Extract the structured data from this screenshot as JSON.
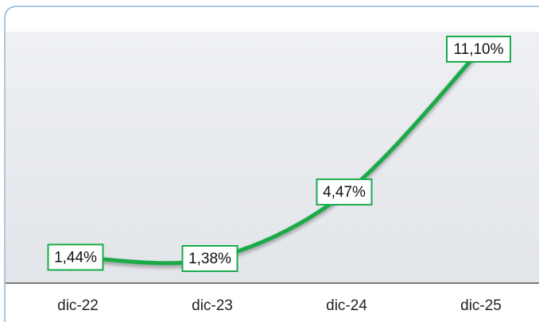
{
  "chart_data": {
    "type": "line",
    "categories": [
      "dic-22",
      "dic-23",
      "dic-24",
      "dic-25"
    ],
    "values": [
      1.44,
      1.38,
      4.47,
      11.1
    ],
    "value_labels": [
      "1,44%",
      "1,38%",
      "4,47%",
      "11,10%"
    ],
    "color": "#1aaa4a"
  }
}
